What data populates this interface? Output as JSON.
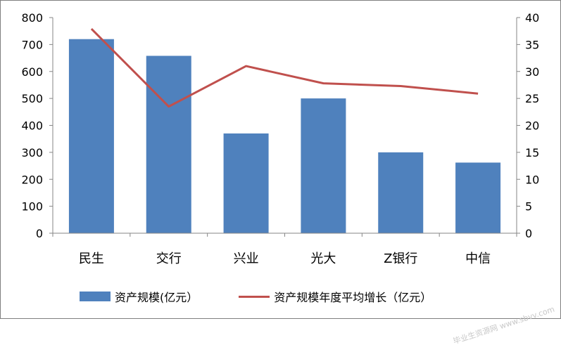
{
  "chart_data": {
    "type": "bar",
    "categories": [
      "民生",
      "交行",
      "兴业",
      "光大",
      "Z银行",
      "中信"
    ],
    "series": [
      {
        "name": "资产规模(亿元）",
        "type": "bar",
        "axis": "left",
        "values": [
          720,
          658,
          370,
          500,
          300,
          262
        ]
      },
      {
        "name": "资产规模年度平均增长（亿元）",
        "type": "line",
        "axis": "right",
        "values": [
          37.9,
          23.5,
          31.0,
          27.8,
          27.3,
          25.9
        ]
      }
    ],
    "y_left": {
      "range": [
        0,
        800
      ],
      "ticks": [
        "0",
        "100",
        "200",
        "300",
        "400",
        "500",
        "600",
        "700",
        "800"
      ]
    },
    "y_right": {
      "range": [
        0,
        40
      ],
      "ticks": [
        "0",
        "5",
        "10",
        "15",
        "20",
        "25",
        "30",
        "35",
        "40"
      ]
    },
    "grid": false,
    "legend_position": "bottom",
    "colors": {
      "bar": "#4f81bd",
      "line": "#c0504d",
      "axis": "#868686"
    }
  },
  "watermark": "毕业生资源网 www.sbvv.com"
}
